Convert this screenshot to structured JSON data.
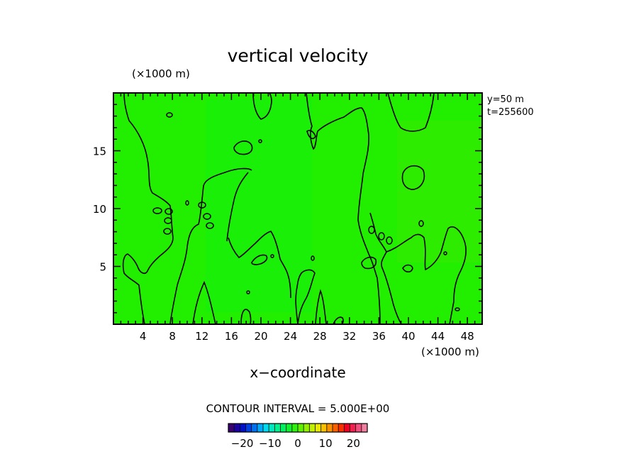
{
  "chart_data": {
    "type": "heatmap",
    "title": "vertical velocity",
    "xlabel": "x−coordinate",
    "ylabel": "",
    "x_scale_label": "(×1000 m)",
    "y_scale_label": "(×1000 m)",
    "xlim": [
      0,
      50
    ],
    "ylim": [
      0,
      20
    ],
    "x_ticks": [
      4,
      8,
      12,
      16,
      20,
      24,
      28,
      32,
      36,
      40,
      44,
      48
    ],
    "y_ticks": [
      5,
      10,
      15
    ],
    "x_tick_labels": [
      "4",
      "8",
      "12",
      "16",
      "20",
      "24",
      "28",
      "32",
      "36",
      "40",
      "44",
      "48"
    ],
    "y_tick_labels": [
      "5",
      "10",
      "15"
    ],
    "annotations": [
      "y=50  m",
      "t=255600"
    ],
    "contour_interval_text": "CONTOUR INTERVAL = 5.000E+00",
    "contour_interval": 5.0,
    "field_color": "#22ee00",
    "colorbar": {
      "range": [
        -25,
        25
      ],
      "tick_values": [
        -20,
        -10,
        0,
        10,
        20
      ],
      "tick_labels": [
        "−20",
        "−10",
        "0",
        "10",
        "20"
      ],
      "colors": [
        "#3a0070",
        "#1a00a0",
        "#0010c8",
        "#0040e0",
        "#0070f0",
        "#00a8f8",
        "#00d8f0",
        "#00e8c0",
        "#00f090",
        "#00f060",
        "#10f030",
        "#30f010",
        "#60f000",
        "#90f000",
        "#c0f000",
        "#e8e800",
        "#f8c000",
        "#f89000",
        "#f86000",
        "#f83000",
        "#f00020",
        "#f02050",
        "#f05080",
        "#f080a0"
      ]
    }
  }
}
